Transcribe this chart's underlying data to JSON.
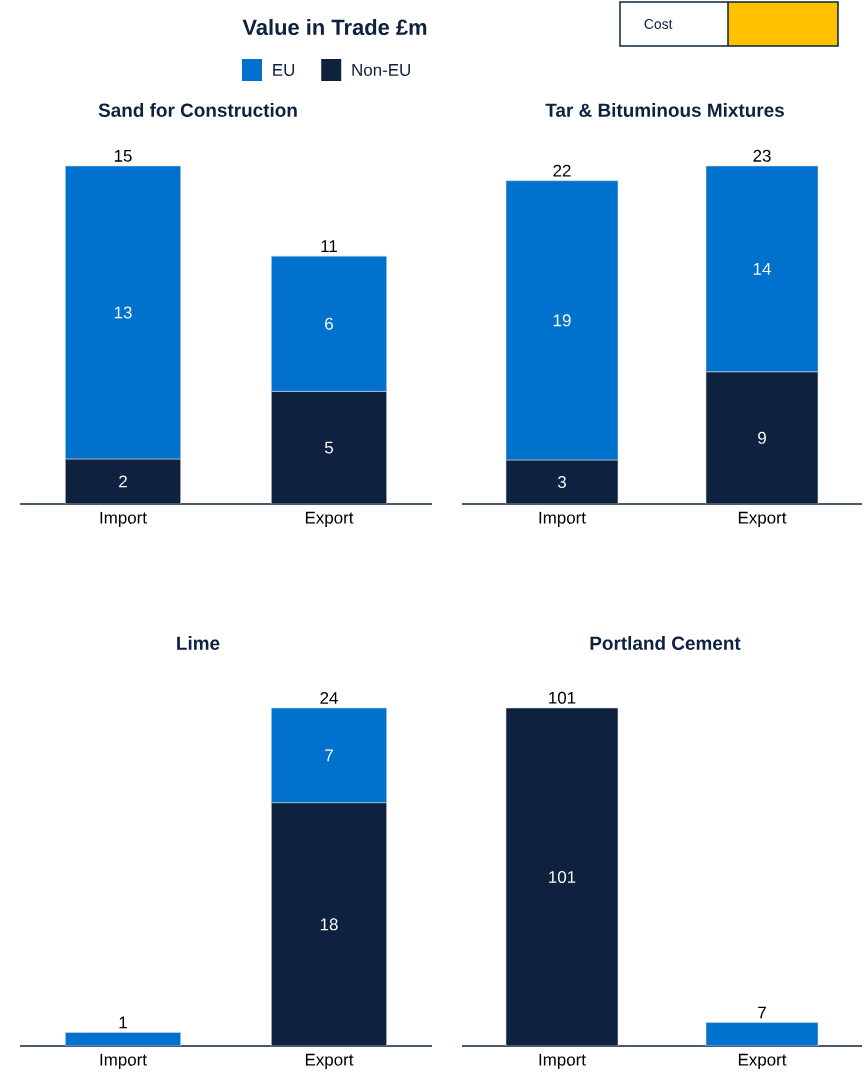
{
  "chart_data": [
    {
      "type": "other",
      "title": "Value in Trade £m",
      "annotations": [
        "Cost"
      ]
    },
    {
      "type": "bar",
      "title": "Sand for Construction",
      "categories": [
        "Import",
        "Export"
      ],
      "stacked": true,
      "legend": "top",
      "totals": [
        "15",
        "11"
      ],
      "series": [
        {
          "name": "Non-EU",
          "color": "#0e2240",
          "values": [
            2,
            5
          ],
          "value_labels": [
            "2",
            "5"
          ]
        },
        {
          "name": "EU",
          "color": "#0072ce",
          "values": [
            13,
            6
          ],
          "value_labels": [
            "13",
            "6"
          ]
        }
      ]
    },
    {
      "type": "bar",
      "title": "Tar & Bituminous Mixtures",
      "categories": [
        "Import",
        "Export"
      ],
      "stacked": true,
      "totals": [
        "22",
        "23"
      ],
      "series": [
        {
          "color": "#0e2240",
          "values": [
            3,
            9
          ],
          "value_labels": [
            "3",
            "9"
          ]
        },
        {
          "color": "#0072ce",
          "values": [
            19,
            14
          ],
          "value_labels": [
            "19",
            "14"
          ]
        }
      ]
    },
    {
      "type": "bar",
      "title": "Lime",
      "categories": [
        "Import",
        "Export"
      ],
      "stacked": true,
      "totals": [
        "1",
        "24"
      ],
      "series": [
        {
          "color": "#0e2240",
          "values": [
            null,
            18
          ],
          "value_labels": [
            null,
            "18"
          ]
        },
        {
          "color": "#0072ce",
          "values": [
            1,
            7
          ],
          "value_labels": [
            null,
            "7"
          ]
        }
      ]
    },
    {
      "type": "bar",
      "title": "Portland Cement",
      "categories": [
        "Import",
        "Export"
      ],
      "stacked": true,
      "totals": [
        "101",
        "7"
      ],
      "series": [
        {
          "color": "#0e2240",
          "values": [
            101,
            null
          ],
          "value_labels": [
            "101",
            null
          ]
        },
        {
          "color": "#0072ce",
          "values": [
            null,
            7
          ],
          "value_labels": [
            null,
            null
          ]
        }
      ]
    }
  ]
}
